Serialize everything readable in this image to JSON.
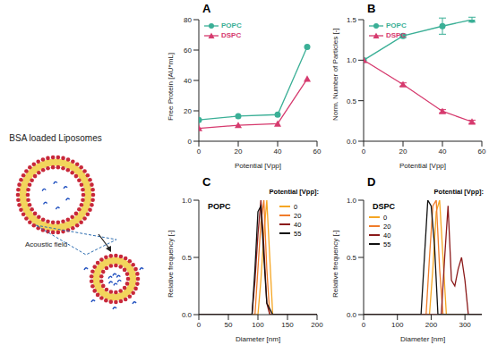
{
  "schematic": {
    "title": "BSA loaded Liposomes",
    "annotation": "Acoustic field"
  },
  "chart_data": [
    {
      "type": "line",
      "title": "A",
      "xlabel": "Potential [Vpp]",
      "ylabel": "Free Protein [AU*mL]",
      "xlim": [
        0,
        60
      ],
      "xticks": [
        0,
        20,
        40,
        60
      ],
      "ylim": [
        0,
        80
      ],
      "yticks": [
        0,
        20,
        40,
        60,
        80
      ],
      "legend": "upper left",
      "series": [
        {
          "name": "POPC",
          "color": "#3aaf96",
          "marker": "circle",
          "x": [
            0,
            20,
            40,
            55
          ],
          "values": [
            14,
            16.5,
            17.5,
            62
          ]
        },
        {
          "name": "DSPC",
          "color": "#d63a6e",
          "marker": "triangle",
          "x": [
            0,
            20,
            40,
            55
          ],
          "values": [
            8.5,
            10.5,
            11.5,
            41
          ]
        }
      ]
    },
    {
      "type": "line",
      "title": "B",
      "xlabel": "Potential [Vpp]",
      "ylabel": "Norm. Number of Particles [-]",
      "xlim": [
        0,
        60
      ],
      "xticks": [
        0,
        20,
        40,
        60
      ],
      "ylim": [
        0,
        1.5
      ],
      "yticks": [
        {
          "value": 0,
          "label": "0.0"
        },
        0.5,
        {
          "value": 1,
          "label": "1.0"
        },
        1.5
      ],
      "legend": "upper left",
      "series": [
        {
          "name": "POPC",
          "color": "#3aaf96",
          "marker": "circle",
          "x": [
            0,
            20,
            40,
            55
          ],
          "values": [
            1,
            1.3,
            1.42,
            1.5
          ],
          "errors": [
            0,
            0.02,
            0.1,
            0.03
          ]
        },
        {
          "name": "DSPC",
          "color": "#d63a6e",
          "marker": "triangle",
          "x": [
            0,
            20,
            40,
            55
          ],
          "values": [
            1,
            0.7,
            0.37,
            0.24
          ],
          "errors": [
            0,
            0.02,
            0.02,
            0.02
          ]
        }
      ]
    },
    {
      "type": "line",
      "title": "C",
      "subtitle": "POPC",
      "xlabel": "Diameter [nm]",
      "ylabel": "Relative frequency [-]",
      "xlim": [
        0,
        200
      ],
      "xticks": [
        0,
        50,
        100,
        150,
        200
      ],
      "ylim": [
        0,
        1
      ],
      "yticks": [
        {
          "value": 0,
          "label": "0.0"
        },
        0.5,
        {
          "value": 1,
          "label": "1.0"
        }
      ],
      "legend": "upper right",
      "legend_title": "Potential [Vpp]:",
      "series": [
        {
          "name": "0",
          "color": "#f5a623",
          "x": [
            0,
            100,
            105,
            110,
            115,
            120,
            125,
            200
          ],
          "values": [
            0,
            0,
            0.3,
            0.7,
            1,
            0.5,
            0,
            0
          ]
        },
        {
          "name": "20",
          "color": "#f07c2a",
          "x": [
            0,
            95,
            100,
            105,
            110,
            115,
            120,
            200
          ],
          "values": [
            0,
            0,
            0.4,
            0.8,
            1,
            0.4,
            0,
            0
          ]
        },
        {
          "name": "40",
          "color": "#8b1a1a",
          "x": [
            0,
            90,
            95,
            100,
            105,
            110,
            115,
            120,
            200
          ],
          "values": [
            0,
            0,
            0.3,
            0.7,
            1,
            0.6,
            0.1,
            0,
            0
          ]
        },
        {
          "name": "55",
          "color": "#111111",
          "x": [
            0,
            90,
            95,
            100,
            105,
            110,
            115,
            120,
            125,
            200
          ],
          "values": [
            0,
            0,
            0.4,
            0.9,
            0.95,
            0.5,
            0.1,
            0.05,
            0,
            0
          ]
        }
      ]
    },
    {
      "type": "line",
      "title": "D",
      "subtitle": "DSPC",
      "xlabel": "Diameter [nm]",
      "ylabel": "Relative frequency [-]",
      "xlim": [
        0,
        350
      ],
      "xticks": [
        0,
        100,
        200,
        300
      ],
      "ylim": [
        0,
        1
      ],
      "yticks": [
        {
          "value": 0,
          "label": "0.0"
        },
        0.5,
        {
          "value": 1,
          "label": "1.0"
        }
      ],
      "legend": "upper left",
      "legend_title": "Potential [Vpp]:",
      "series": [
        {
          "name": "0",
          "color": "#f5a623",
          "x": [
            0,
            195,
            205,
            215,
            225,
            235,
            245,
            350
          ],
          "values": [
            0,
            0,
            0.4,
            0.9,
            1,
            0.5,
            0,
            0
          ]
        },
        {
          "name": "20",
          "color": "#f07c2a",
          "x": [
            0,
            185,
            195,
            205,
            215,
            225,
            235,
            350
          ],
          "values": [
            0,
            0,
            0.5,
            0.95,
            1,
            0.4,
            0,
            0
          ]
        },
        {
          "name": "40",
          "color": "#8b1a1a",
          "x": [
            0,
            230,
            240,
            250,
            260,
            270,
            280,
            290,
            300,
            310,
            350
          ],
          "values": [
            0,
            0,
            0.5,
            0.95,
            0.3,
            0.25,
            0.4,
            0.5,
            0.3,
            0,
            0
          ]
        },
        {
          "name": "55",
          "color": "#111111",
          "x": [
            0,
            170,
            180,
            190,
            200,
            210,
            220,
            350
          ],
          "values": [
            0,
            0,
            0.5,
            1,
            0.95,
            0.6,
            0,
            0
          ]
        }
      ]
    }
  ]
}
